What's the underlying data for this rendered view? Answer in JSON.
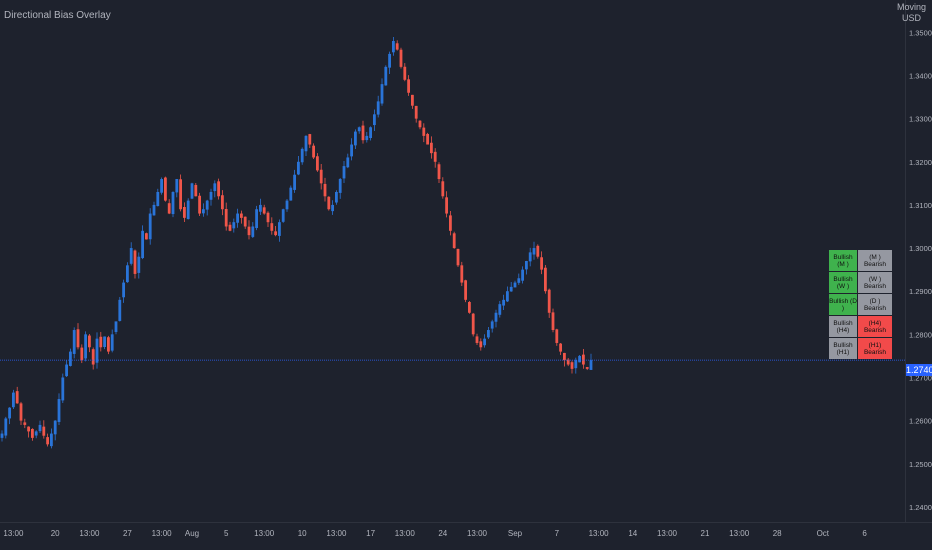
{
  "indicator": {
    "title": "Directional Bias Overlay"
  },
  "currency": {
    "lines": [
      "Moving",
      "USD"
    ]
  },
  "colors": {
    "background": "#1e222d",
    "bull_candle": "#2a74d8",
    "bear_candle": "#f0564a",
    "axis_text": "#b2b5be",
    "price_line": "#2962ff",
    "bias_bull": "#3fb24d",
    "bias_bear": "#f24a4a",
    "bias_neutral": "#9598a1"
  },
  "price_tag": "1.27403",
  "bias_table": [
    {
      "bull": "Bullish (M )",
      "bear": "(M ) Bearish",
      "bull_active": true,
      "bear_active": false
    },
    {
      "bull": "Bullish (W )",
      "bear": "(W ) Bearish",
      "bull_active": true,
      "bear_active": false
    },
    {
      "bull": "Bullish (D )",
      "bear": "(D ) Bearish",
      "bull_active": true,
      "bear_active": false
    },
    {
      "bull": "Bullish (H4)",
      "bear": "(H4) Bearish",
      "bull_active": false,
      "bear_active": true
    },
    {
      "bull": "Bullish (H1)",
      "bear": "(H1) Bearish",
      "bull_active": false,
      "bear_active": true
    }
  ],
  "chart_data": {
    "type": "candlestick",
    "title": "",
    "ylim": [
      1.2365,
      1.3575
    ],
    "current_price": 1.27403,
    "y_ticks": [
      "1.35000",
      "1.34000",
      "1.33000",
      "1.32000",
      "1.31000",
      "1.30000",
      "1.29000",
      "1.28000",
      "1.27000",
      "1.26000",
      "1.25000",
      "1.24000"
    ],
    "y_tick_values": [
      1.35,
      1.34,
      1.33,
      1.32,
      1.31,
      1.3,
      1.29,
      1.28,
      1.27,
      1.26,
      1.25,
      1.24
    ],
    "x_ticks": [
      {
        "label": "13:00",
        "bar": 3
      },
      {
        "label": "20",
        "bar": 14
      },
      {
        "label": "13:00",
        "bar": 23
      },
      {
        "label": "27",
        "bar": 33
      },
      {
        "label": "13:00",
        "bar": 42
      },
      {
        "label": "Aug",
        "bar": 50
      },
      {
        "label": "5",
        "bar": 59
      },
      {
        "label": "13:00",
        "bar": 69
      },
      {
        "label": "10",
        "bar": 79
      },
      {
        "label": "13:00",
        "bar": 88
      },
      {
        "label": "17",
        "bar": 97
      },
      {
        "label": "13:00",
        "bar": 106
      },
      {
        "label": "24",
        "bar": 116
      },
      {
        "label": "13:00",
        "bar": 125
      },
      {
        "label": "Sep",
        "bar": 135
      },
      {
        "label": "7",
        "bar": 146
      },
      {
        "label": "13:00",
        "bar": 157
      },
      {
        "label": "14",
        "bar": 166
      },
      {
        "label": "13:00",
        "bar": 175
      },
      {
        "label": "21",
        "bar": 185
      },
      {
        "label": "13:00",
        "bar": 194
      },
      {
        "label": "28",
        "bar": 204
      },
      {
        "label": "Oct",
        "bar": 216
      },
      {
        "label": "6",
        "bar": 227
      }
    ],
    "bar_count": 240,
    "closes": [
      1.257,
      1.2605,
      1.263,
      1.2665,
      1.264,
      1.26,
      1.259,
      1.2575,
      1.256,
      1.2575,
      1.259,
      1.2565,
      1.2545,
      1.257,
      1.26,
      1.265,
      1.27,
      1.273,
      1.276,
      1.281,
      1.277,
      1.274,
      1.28,
      1.277,
      1.273,
      1.279,
      1.277,
      1.2795,
      1.276,
      1.28,
      1.283,
      1.288,
      1.292,
      1.296,
      1.3,
      1.294,
      1.298,
      1.304,
      1.302,
      1.308,
      1.31,
      1.313,
      1.316,
      1.311,
      1.308,
      1.313,
      1.316,
      1.309,
      1.307,
      1.311,
      1.315,
      1.312,
      1.308,
      1.309,
      1.311,
      1.313,
      1.315,
      1.312,
      1.309,
      1.305,
      1.304,
      1.306,
      1.308,
      1.307,
      1.305,
      1.303,
      1.305,
      1.309,
      1.31,
      1.308,
      1.306,
      1.304,
      1.303,
      1.306,
      1.309,
      1.311,
      1.314,
      1.317,
      1.32,
      1.323,
      1.326,
      1.324,
      1.321,
      1.318,
      1.315,
      1.312,
      1.309,
      1.31,
      1.313,
      1.316,
      1.319,
      1.321,
      1.324,
      1.327,
      1.328,
      1.325,
      1.326,
      1.328,
      1.331,
      1.334,
      1.338,
      1.342,
      1.345,
      1.348,
      1.346,
      1.342,
      1.339,
      1.336,
      1.333,
      1.33,
      1.328,
      1.326,
      1.324,
      1.322,
      1.32,
      1.316,
      1.312,
      1.308,
      1.304,
      1.3,
      1.296,
      1.292,
      1.288,
      1.285,
      1.28,
      1.278,
      1.277,
      1.279,
      1.281,
      1.283,
      1.285,
      1.287,
      1.288,
      1.29,
      1.291,
      1.292,
      1.293,
      1.295,
      1.297,
      1.299,
      1.3,
      1.298,
      1.295,
      1.29,
      1.285,
      1.281,
      1.278,
      1.276,
      1.274,
      1.273,
      1.272,
      1.274,
      1.275,
      1.273,
      1.272,
      1.274
    ]
  }
}
